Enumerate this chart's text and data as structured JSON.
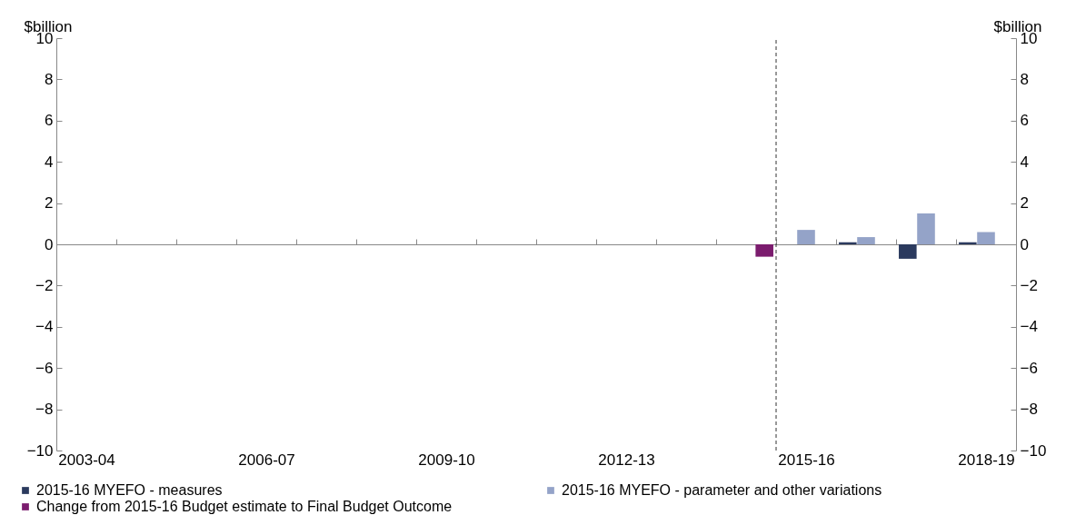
{
  "chart_data": {
    "type": "bar",
    "categories": [
      "2003-04",
      null,
      null,
      "2006-07",
      null,
      null,
      "2009-10",
      null,
      null,
      "2012-13",
      null,
      null,
      "2015-16",
      null,
      null,
      "2018-19"
    ],
    "series": [
      {
        "name": "2015-16 MYEFO - measures",
        "color": "#2b3a5e",
        "values": [
          null,
          null,
          null,
          null,
          null,
          null,
          null,
          null,
          null,
          null,
          null,
          null,
          null,
          0.1,
          -0.7,
          0.1
        ]
      },
      {
        "name": "2015-16 MYEFO - parameter and other variations",
        "color": "#94a3c8",
        "values": [
          null,
          null,
          null,
          null,
          null,
          null,
          null,
          null,
          null,
          null,
          null,
          null,
          0.7,
          0.35,
          1.5,
          0.6
        ]
      },
      {
        "name": "Change from 2015-16 Budget estimate to Final Budget Outcome",
        "color": "#7b1c6e",
        "values": [
          null,
          null,
          null,
          null,
          null,
          null,
          null,
          null,
          null,
          null,
          null,
          -0.6,
          null,
          null,
          null,
          null
        ]
      }
    ],
    "ylabel": "$billion",
    "y2label": "$billion",
    "ylim": [
      -10,
      10
    ],
    "yticks": [
      -10,
      -8,
      -6,
      -4,
      -2,
      0,
      2,
      4,
      6,
      8,
      10
    ],
    "y2lim": [
      -10,
      10
    ],
    "y2ticks": [
      -10,
      -8,
      -6,
      -4,
      -2,
      0,
      2,
      4,
      6,
      8,
      10
    ],
    "ref_lines": [
      {
        "axis": "x",
        "value": "2015-16",
        "line_style": "dashed"
      }
    ],
    "grid": false,
    "legend": "bottom"
  }
}
